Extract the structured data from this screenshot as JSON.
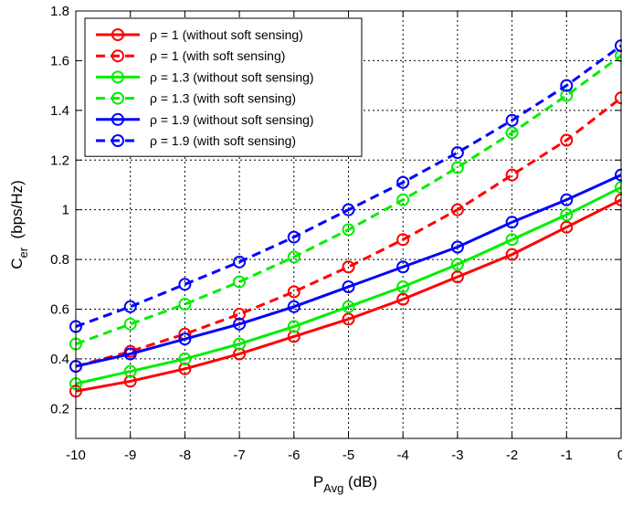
{
  "chart_data": {
    "type": "line",
    "title": "",
    "xlabel": {
      "main": "P",
      "sub": "Avg",
      "unit": " (dB)"
    },
    "ylabel": {
      "main": "C",
      "sub": "er",
      "unit": "  (bps/Hz)"
    },
    "x": [
      -10,
      -9,
      -8,
      -7,
      -6,
      -5,
      -4,
      -3,
      -2,
      -1,
      0
    ],
    "x_tick_labels": [
      "-10",
      "-9",
      "-8",
      "-7",
      "-6",
      "-5",
      "-4",
      "-3",
      "-2",
      "-1",
      "0"
    ],
    "y_ticks": [
      0.2,
      0.4,
      0.6,
      0.8,
      1.0,
      1.2,
      1.4,
      1.6,
      1.8
    ],
    "y_tick_labels": [
      "0.2",
      "0.4",
      "0.6",
      "0.8",
      "1",
      "1.2",
      "1.4",
      "1.6",
      "1.8"
    ],
    "xlim": [
      -10,
      0
    ],
    "ylim": [
      0.08,
      1.8
    ],
    "grid": true,
    "legend_position": "top-left",
    "series": [
      {
        "name": "ρ = 1 (without soft sensing)",
        "color": "#ff0000",
        "dashed": false,
        "values": [
          0.27,
          0.31,
          0.36,
          0.42,
          0.49,
          0.56,
          0.64,
          0.73,
          0.82,
          0.93,
          1.04
        ]
      },
      {
        "name": "ρ = 1 (with soft sensing)",
        "color": "#ff0000",
        "dashed": true,
        "values": [
          0.37,
          0.43,
          0.5,
          0.58,
          0.67,
          0.77,
          0.88,
          1.0,
          1.14,
          1.28,
          1.45
        ]
      },
      {
        "name": "ρ = 1.3 (without soft sensing)",
        "color": "#00ee00",
        "dashed": false,
        "values": [
          0.3,
          0.35,
          0.4,
          0.46,
          0.53,
          0.61,
          0.69,
          0.78,
          0.88,
          0.98,
          1.09
        ]
      },
      {
        "name": "ρ = 1.3 (with soft sensing)",
        "color": "#00ee00",
        "dashed": true,
        "values": [
          0.46,
          0.54,
          0.62,
          0.71,
          0.81,
          0.92,
          1.04,
          1.17,
          1.31,
          1.46,
          1.62
        ]
      },
      {
        "name": "ρ = 1.9 (without soft sensing)",
        "color": "#0000ff",
        "dashed": false,
        "values": [
          0.37,
          0.42,
          0.48,
          0.54,
          0.61,
          0.69,
          0.77,
          0.85,
          0.95,
          1.04,
          1.14
        ]
      },
      {
        "name": "ρ = 1.9 (with soft sensing)",
        "color": "#0000ff",
        "dashed": true,
        "values": [
          0.53,
          0.61,
          0.7,
          0.79,
          0.89,
          1.0,
          1.11,
          1.23,
          1.36,
          1.5,
          1.66
        ]
      }
    ]
  }
}
